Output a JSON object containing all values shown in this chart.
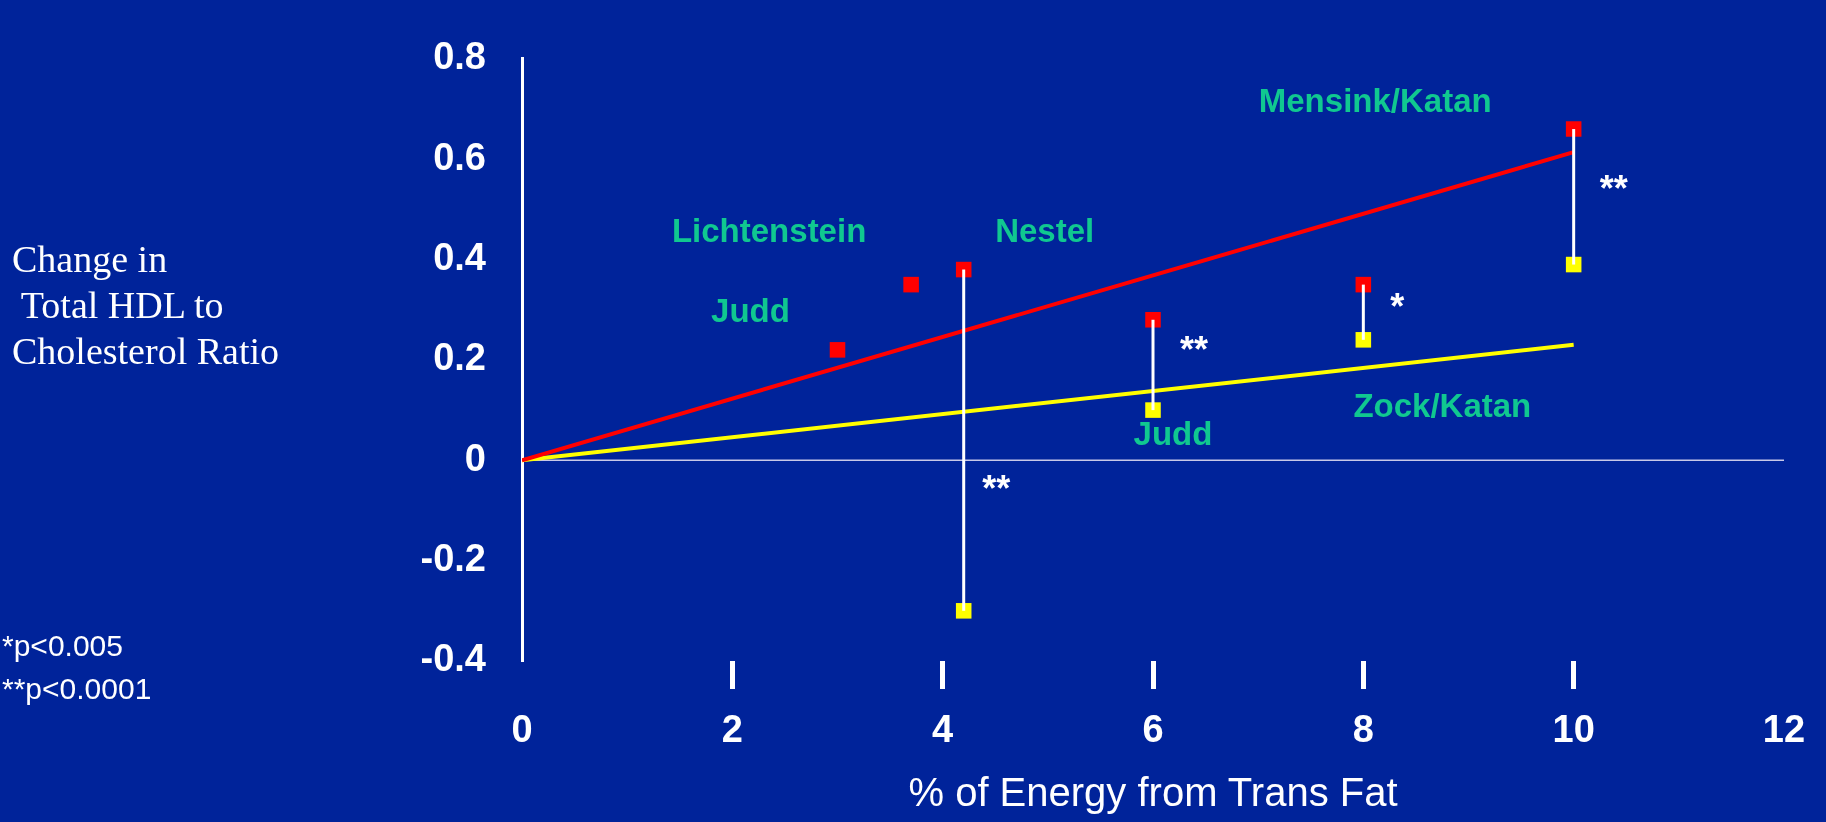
{
  "chart_data": {
    "type": "scatter",
    "ylabel": "Change in\n Total HDL to\nCholesterol Ratio",
    "xlabel": "% of Energy from Trans Fat",
    "series": [
      {
        "type": "line",
        "color": "#ff0000",
        "x": [
          0,
          10
        ],
        "values": [
          0,
          0.614
        ],
        "marker": "none"
      },
      {
        "type": "line",
        "color": "#ffff00",
        "x": [
          0,
          10
        ],
        "values": [
          0,
          0.23
        ],
        "marker": "none"
      },
      {
        "color": "#ff0000",
        "x": [
          3.0,
          3.7,
          4.2,
          6.0,
          8.0,
          10.0
        ],
        "values": [
          0.22,
          0.35,
          0.38,
          0.28,
          0.35,
          0.66
        ],
        "marker": "square"
      },
      {
        "color": "#ffff00",
        "x": [
          4.2,
          6.0,
          8.0,
          10.0
        ],
        "values": [
          -0.3,
          0.1,
          0.24,
          0.39
        ],
        "marker": "square"
      }
    ],
    "xlim": [
      0,
      12
    ],
    "xticks": [
      0,
      2,
      4,
      6,
      8,
      10,
      12
    ],
    "ylim": [
      -0.4,
      0.8
    ],
    "yticks": [
      -0.4,
      -0.2,
      0,
      0.2,
      0.4,
      0.6,
      0.8
    ],
    "grid": false,
    "legend": false,
    "ref_lines": [
      {
        "axis": "y",
        "value": 0,
        "color": "#c8c8e8"
      }
    ],
    "annotations": [
      {
        "text": "Judd",
        "x": 3.0,
        "y": 0.22
      },
      {
        "text": "Lichtenstein",
        "x": 3.7,
        "y": 0.35
      },
      {
        "text": "Nestel",
        "x": 4.2,
        "y": 0.38
      },
      {
        "text": "Mensink/Katan",
        "x": 10.0,
        "y": 0.66
      },
      {
        "text": "Judd",
        "x": 6.0,
        "y": 0.1
      },
      {
        "text": "Zock/Katan",
        "x": 8.0,
        "y": 0.24
      },
      {
        "text": "**",
        "x": 4.51,
        "y": 0
      },
      {
        "text": "**",
        "x": 6.0,
        "y": 0.1
      },
      {
        "text": "*",
        "x": 8.0,
        "y": 0.24
      },
      {
        "text": "**",
        "x": 10.0,
        "y": 0.39
      },
      "*p<0.005",
      "**p<0.0001"
    ]
  }
}
